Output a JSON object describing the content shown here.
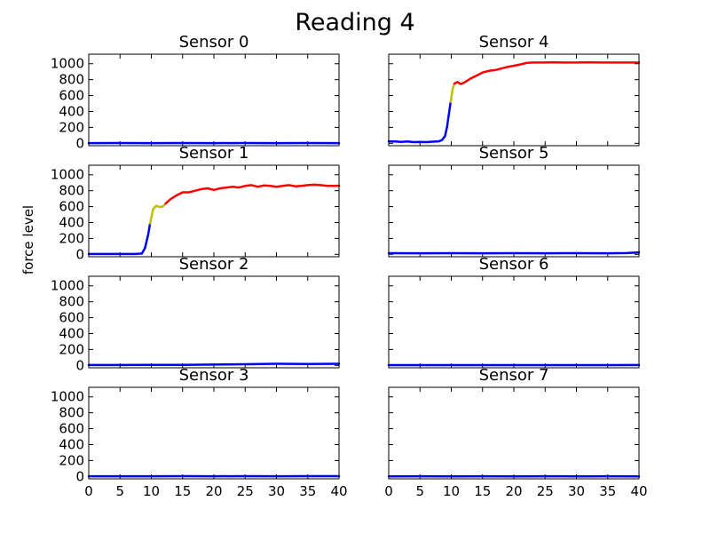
{
  "chart_data": {
    "type": "line",
    "title": "Reading 4",
    "ylabel": "force level",
    "xlim": [
      0,
      40
    ],
    "ylim": [
      -30,
      1120
    ],
    "xticks": [
      0,
      5,
      10,
      15,
      20,
      25,
      30,
      35,
      40
    ],
    "yticks": [
      0,
      200,
      400,
      600,
      800,
      1000
    ],
    "segment_colors": {
      "low": "#0000ff",
      "mid": "#bfbf00",
      "high": "#ff0000"
    },
    "panels": [
      {
        "title": "Sensor 0",
        "segments": [
          {
            "color": "low",
            "x": [
              0,
              5,
              10,
              15,
              20,
              25,
              30,
              35,
              40
            ],
            "y": [
              2,
              3,
              2,
              3,
              2,
              3,
              2,
              3,
              2
            ]
          }
        ]
      },
      {
        "title": "Sensor 4",
        "segments": [
          {
            "color": "low",
            "x": [
              0,
              1,
              2,
              3,
              4,
              5,
              6,
              7,
              8,
              8.5,
              9,
              9.3,
              9.6,
              9.9
            ],
            "y": [
              25,
              22,
              18,
              22,
              15,
              18,
              15,
              20,
              25,
              40,
              90,
              200,
              360,
              520
            ]
          },
          {
            "color": "mid",
            "x": [
              9.9,
              10.2,
              10.5
            ],
            "y": [
              520,
              680,
              750
            ]
          },
          {
            "color": "high",
            "x": [
              10.5,
              11,
              11.5,
              12,
              13,
              14,
              15,
              16,
              17,
              18,
              19,
              20,
              21,
              22,
              23,
              24,
              25,
              26,
              28,
              30,
              32,
              34,
              36,
              38,
              40
            ],
            "y": [
              750,
              770,
              745,
              760,
              810,
              850,
              890,
              910,
              920,
              940,
              960,
              975,
              990,
              1010,
              1015,
              1015,
              1015,
              1018,
              1015,
              1015,
              1018,
              1015,
              1015,
              1015,
              1015
            ]
          }
        ]
      },
      {
        "title": "Sensor 1",
        "segments": [
          {
            "color": "low",
            "x": [
              0,
              2,
              4,
              6,
              7.5,
              8.5,
              9,
              9.5,
              9.8
            ],
            "y": [
              5,
              5,
              5,
              5,
              5,
              10,
              80,
              250,
              390
            ]
          },
          {
            "color": "mid",
            "x": [
              9.8,
              10.3,
              10.8,
              11.3,
              11.8,
              12.3
            ],
            "y": [
              390,
              570,
              610,
              595,
              600,
              640
            ]
          },
          {
            "color": "high",
            "x": [
              12.3,
              13,
              14,
              15,
              16,
              17,
              18,
              19,
              20,
              21,
              22,
              23,
              24,
              25,
              26,
              27,
              28,
              29,
              30,
              31,
              32,
              33,
              34,
              35,
              36,
              37,
              38,
              39,
              40
            ],
            "y": [
              640,
              690,
              740,
              780,
              780,
              800,
              820,
              830,
              810,
              830,
              840,
              850,
              840,
              860,
              870,
              850,
              865,
              860,
              850,
              860,
              870,
              855,
              860,
              870,
              875,
              870,
              862,
              860,
              862
            ]
          }
        ]
      },
      {
        "title": "Sensor 5",
        "segments": [
          {
            "color": "low",
            "x": [
              0,
              5,
              10,
              15,
              20,
              25,
              30,
              35,
              38,
              40
            ],
            "y": [
              15,
              14,
              15,
              14,
              15,
              14,
              15,
              14,
              16,
              25
            ]
          }
        ]
      },
      {
        "title": "Sensor 2",
        "segments": [
          {
            "color": "low",
            "x": [
              0,
              5,
              10,
              15,
              20,
              25,
              30,
              35,
              40
            ],
            "y": [
              5,
              5,
              6,
              7,
              10,
              15,
              20,
              18,
              20
            ]
          }
        ]
      },
      {
        "title": "Sensor 6",
        "segments": [
          {
            "color": "low",
            "x": [
              0,
              5,
              10,
              15,
              20,
              25,
              30,
              35,
              40
            ],
            "y": [
              3,
              4,
              3,
              4,
              3,
              4,
              4,
              3,
              5
            ]
          }
        ]
      },
      {
        "title": "Sensor 3",
        "segments": [
          {
            "color": "low",
            "x": [
              0,
              5,
              10,
              15,
              20,
              25,
              30,
              35,
              40
            ],
            "y": [
              2,
              2,
              2,
              3,
              2,
              3,
              2,
              3,
              4
            ]
          }
        ]
      },
      {
        "title": "Sensor 7",
        "segments": [
          {
            "color": "low",
            "x": [
              0,
              5,
              10,
              15,
              20,
              25,
              30,
              35,
              40
            ],
            "y": [
              1,
              2,
              1,
              2,
              1,
              2,
              1,
              2,
              1
            ]
          }
        ]
      }
    ]
  }
}
